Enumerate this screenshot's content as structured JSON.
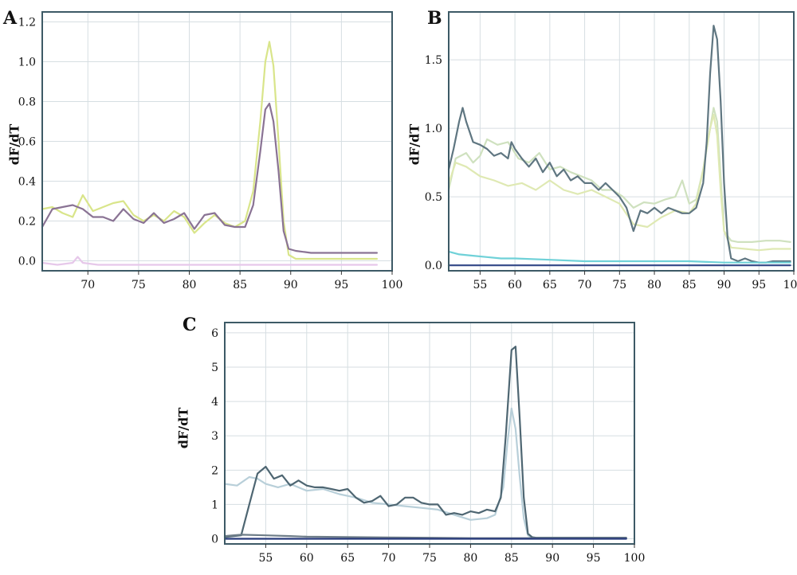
{
  "chart_data": [
    {
      "label": "A",
      "type": "line",
      "ylabel": "dF/dT",
      "xlabel": "",
      "xlim": [
        65.5,
        100
      ],
      "ylim": [
        -0.05,
        1.25
      ],
      "xticks": [
        70,
        75,
        80,
        85,
        90,
        95,
        100
      ],
      "yticks": [
        0.0,
        0.2,
        0.4,
        0.6,
        0.8,
        1.0,
        1.2
      ],
      "ytick_labels": [
        "0.0",
        "0.2",
        "0.4",
        "0.6",
        "0.8",
        "1.0",
        "1.2"
      ],
      "grid": true,
      "colors": {
        "frame": "#3d5a66",
        "grid": "#d6dee2"
      },
      "series": [
        {
          "color": "#d9e58a",
          "x": [
            65.5,
            66.5,
            67.5,
            68.5,
            69.5,
            70.5,
            71.5,
            72.5,
            73.5,
            74.5,
            75.5,
            76.5,
            77.5,
            78.5,
            79.5,
            80.5,
            81.5,
            82.5,
            83.5,
            84.5,
            85.5,
            86.3,
            87,
            87.5,
            87.9,
            88.3,
            88.8,
            89.3,
            89.8,
            90.5,
            92,
            94,
            96,
            98.5
          ],
          "y": [
            0.26,
            0.27,
            0.24,
            0.22,
            0.33,
            0.25,
            0.27,
            0.29,
            0.3,
            0.23,
            0.2,
            0.23,
            0.2,
            0.25,
            0.22,
            0.14,
            0.19,
            0.23,
            0.19,
            0.17,
            0.2,
            0.35,
            0.7,
            1.0,
            1.1,
            0.98,
            0.6,
            0.2,
            0.03,
            0.01,
            0.01,
            0.01,
            0.01,
            0.01
          ]
        },
        {
          "color": "#8a7394",
          "x": [
            65.5,
            66.5,
            67.5,
            68.5,
            69.5,
            70.5,
            71.5,
            72.5,
            73.5,
            74.5,
            75.5,
            76.5,
            77.5,
            78.5,
            79.5,
            80.5,
            81.5,
            82.5,
            83.5,
            84.5,
            85.5,
            86.3,
            87,
            87.5,
            87.9,
            88.3,
            88.8,
            89.3,
            89.8,
            90.5,
            92,
            94,
            96,
            98.5
          ],
          "y": [
            0.17,
            0.26,
            0.27,
            0.28,
            0.26,
            0.22,
            0.22,
            0.2,
            0.26,
            0.21,
            0.19,
            0.24,
            0.19,
            0.21,
            0.24,
            0.16,
            0.23,
            0.24,
            0.18,
            0.17,
            0.17,
            0.28,
            0.55,
            0.76,
            0.79,
            0.7,
            0.45,
            0.15,
            0.06,
            0.05,
            0.04,
            0.04,
            0.04,
            0.04
          ]
        },
        {
          "color": "#e6c8ea",
          "x": [
            65.5,
            67,
            68.5,
            69,
            69.5,
            71,
            73,
            75,
            80,
            85,
            90,
            95,
            98.5
          ],
          "y": [
            -0.01,
            -0.02,
            -0.01,
            0.02,
            -0.01,
            -0.02,
            -0.02,
            -0.02,
            -0.02,
            -0.02,
            -0.02,
            -0.02,
            -0.02
          ]
        }
      ]
    },
    {
      "label": "B",
      "type": "line",
      "ylabel": "dF/dT",
      "xlabel": "",
      "xlim": [
        50.5,
        100
      ],
      "ylim": [
        -0.04,
        1.85
      ],
      "xticks": [
        55,
        60,
        65,
        70,
        75,
        80,
        85,
        90,
        95,
        100
      ],
      "yticks": [
        0.0,
        0.5,
        1.0,
        1.5
      ],
      "ytick_labels": [
        "0.0",
        "0.5",
        "1.0",
        "1.5"
      ],
      "grid": true,
      "colors": {
        "frame": "#3d5a66",
        "grid": "#d6dee2"
      },
      "series": [
        {
          "color": "#cfe1bf",
          "x": [
            50.5,
            51.5,
            53,
            54,
            55,
            56,
            57.5,
            59,
            60.5,
            62,
            63.5,
            65,
            66.5,
            68,
            69.5,
            71,
            72.5,
            74,
            75.5,
            77,
            78.5,
            80,
            81.5,
            83,
            84,
            85,
            86,
            87,
            88,
            88.5,
            89,
            89.5,
            90,
            91,
            92,
            94,
            96,
            98,
            99.5
          ],
          "y": [
            0.55,
            0.78,
            0.82,
            0.75,
            0.8,
            0.92,
            0.88,
            0.9,
            0.78,
            0.75,
            0.82,
            0.7,
            0.72,
            0.68,
            0.65,
            0.62,
            0.55,
            0.55,
            0.5,
            0.42,
            0.46,
            0.45,
            0.48,
            0.5,
            0.62,
            0.45,
            0.48,
            0.7,
            1.0,
            1.15,
            1.05,
            0.65,
            0.25,
            0.18,
            0.17,
            0.17,
            0.18,
            0.18,
            0.17
          ]
        },
        {
          "color": "#dfe9b3",
          "x": [
            50.5,
            51.5,
            53,
            55,
            57,
            59,
            61,
            63,
            65,
            67,
            69,
            71,
            73,
            75,
            77,
            79,
            81,
            83,
            85,
            86,
            87,
            88,
            88.5,
            89,
            89.5,
            90,
            91,
            93,
            95,
            97,
            99.5
          ],
          "y": [
            0.6,
            0.75,
            0.72,
            0.65,
            0.62,
            0.58,
            0.6,
            0.55,
            0.62,
            0.55,
            0.52,
            0.55,
            0.5,
            0.45,
            0.3,
            0.28,
            0.35,
            0.4,
            0.38,
            0.45,
            0.7,
            1.0,
            1.1,
            0.95,
            0.55,
            0.25,
            0.13,
            0.12,
            0.11,
            0.12,
            0.12
          ]
        },
        {
          "color": "#5f7681",
          "x": [
            50.5,
            51.2,
            52,
            52.5,
            53,
            54,
            55,
            56,
            57,
            58,
            59,
            59.5,
            60,
            61,
            62,
            63,
            64,
            65,
            66,
            67,
            68,
            69,
            70,
            71,
            72,
            73,
            74,
            75,
            76,
            77,
            78,
            79,
            80,
            81,
            82,
            83,
            84,
            85,
            86,
            87,
            87.5,
            88,
            88.5,
            89,
            89.5,
            90,
            90.5,
            91,
            92,
            93,
            94,
            95,
            96,
            97,
            98,
            99.5
          ],
          "y": [
            0.7,
            0.85,
            1.05,
            1.15,
            1.05,
            0.9,
            0.88,
            0.85,
            0.8,
            0.82,
            0.78,
            0.9,
            0.85,
            0.78,
            0.72,
            0.78,
            0.68,
            0.75,
            0.65,
            0.7,
            0.62,
            0.65,
            0.6,
            0.6,
            0.55,
            0.6,
            0.55,
            0.5,
            0.42,
            0.25,
            0.4,
            0.38,
            0.42,
            0.38,
            0.42,
            0.4,
            0.38,
            0.38,
            0.42,
            0.6,
            0.9,
            1.4,
            1.75,
            1.65,
            1.2,
            0.6,
            0.2,
            0.05,
            0.03,
            0.05,
            0.03,
            0.02,
            0.02,
            0.03,
            0.03,
            0.03
          ]
        },
        {
          "color": "#6fd1d8",
          "x": [
            50.5,
            52,
            54,
            56,
            58,
            60,
            65,
            70,
            75,
            80,
            85,
            90,
            95,
            99.5
          ],
          "y": [
            0.1,
            0.08,
            0.07,
            0.06,
            0.05,
            0.05,
            0.04,
            0.03,
            0.03,
            0.03,
            0.03,
            0.02,
            0.02,
            0.02
          ]
        },
        {
          "color": "#3b4f8c",
          "x": [
            50.5,
            60,
            70,
            80,
            90,
            99.5
          ],
          "y": [
            0.0,
            0.0,
            0.0,
            0.0,
            0.0,
            0.0
          ]
        }
      ]
    },
    {
      "label": "C",
      "type": "line",
      "ylabel": "dF/dT",
      "xlabel": "",
      "xlim": [
        50,
        100
      ],
      "ylim": [
        -0.15,
        6.3
      ],
      "xticks": [
        55,
        60,
        65,
        70,
        75,
        80,
        85,
        90,
        95,
        100
      ],
      "yticks": [
        0,
        1,
        2,
        3,
        4,
        5,
        6
      ],
      "ytick_labels": [
        "0",
        "1",
        "2",
        "3",
        "4",
        "5",
        "6"
      ],
      "grid": true,
      "colors": {
        "frame": "#3d5a66",
        "grid": "#d6dee2"
      },
      "series": [
        {
          "color": "#b8cfd9",
          "x": [
            50,
            51.5,
            53,
            54,
            55,
            56.5,
            58,
            60,
            62,
            64,
            66,
            68,
            70,
            72,
            74,
            76,
            78,
            80,
            82,
            83,
            84,
            84.5,
            85,
            85.5,
            86,
            86.5,
            87,
            87.5,
            88,
            90,
            95,
            99
          ],
          "y": [
            1.6,
            1.55,
            1.8,
            1.75,
            1.6,
            1.5,
            1.6,
            1.4,
            1.45,
            1.3,
            1.2,
            1.05,
            1.0,
            0.95,
            0.9,
            0.85,
            0.7,
            0.55,
            0.6,
            0.7,
            1.5,
            2.8,
            3.8,
            3.2,
            1.8,
            0.6,
            0.1,
            0.03,
            0.03,
            0.03,
            0.03,
            0.03
          ]
        },
        {
          "color": "#4e6672",
          "x": [
            50,
            52,
            53,
            54,
            55,
            56,
            57,
            58,
            59,
            60,
            61,
            62,
            63,
            64,
            65,
            66,
            67,
            68,
            69,
            70,
            71,
            72,
            73,
            74,
            75,
            76,
            77,
            78,
            79,
            80,
            81,
            82,
            83,
            83.7,
            84.3,
            85,
            85.5,
            86,
            86.5,
            87,
            87.5,
            88,
            90,
            95,
            99
          ],
          "y": [
            0.05,
            0.1,
            1.0,
            1.9,
            2.1,
            1.75,
            1.85,
            1.55,
            1.7,
            1.55,
            1.5,
            1.5,
            1.45,
            1.4,
            1.45,
            1.2,
            1.05,
            1.1,
            1.25,
            0.95,
            1.0,
            1.2,
            1.2,
            1.05,
            1.0,
            1.0,
            0.7,
            0.75,
            0.7,
            0.8,
            0.75,
            0.85,
            0.8,
            1.2,
            3.0,
            5.5,
            5.6,
            3.5,
            1.2,
            0.15,
            0.05,
            0.03,
            0.03,
            0.03,
            0.03
          ]
        },
        {
          "color": "#6e7d88",
          "x": [
            50,
            52,
            55,
            58,
            60,
            65,
            70,
            75,
            80,
            85,
            90,
            95,
            99
          ],
          "y": [
            0.08,
            0.12,
            0.1,
            0.08,
            0.06,
            0.05,
            0.04,
            0.03,
            0.02,
            0.02,
            0.02,
            0.02,
            0.02
          ]
        },
        {
          "color": "#283a7c",
          "x": [
            50,
            60,
            70,
            80,
            90,
            99
          ],
          "y": [
            0.0,
            0.0,
            0.0,
            0.0,
            0.0,
            0.0
          ]
        }
      ]
    }
  ]
}
